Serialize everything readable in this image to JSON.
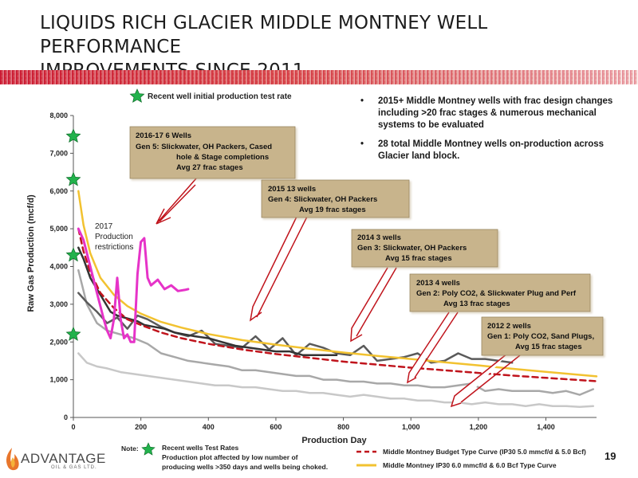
{
  "title_line1": "LIQUIDS RICH GLACIER MIDDLE MONTNEY WELL PERFORMANCE",
  "title_line2": "IMPROVEMENTS SINCE 2011",
  "bullets": [
    "2015+ Middle Montney wells with frac design changes including >20 frac stages & numerous mechanical systems to be evaluated",
    "28 total Middle Montney wells on-production across Glacier land block."
  ],
  "star_legend": "Recent well initial production test rate",
  "note": {
    "label": "Note:",
    "line1": "Recent wells Test Rates",
    "line2": "Production plot affected by low number of",
    "line3": "producing wells  >350 days and wells being choked."
  },
  "page_number": "19",
  "logo": {
    "name": "ADVANTAGE",
    "sub": "OIL & GAS LTD."
  },
  "colors": {
    "accent": "#c8102e",
    "budget": "#c0141c",
    "ip30": "#f2c230",
    "restricted": "#e633c8",
    "gen_dark": "#3a3a3a",
    "gen_mid": "#606060",
    "gen_light": "#a8a8a8",
    "gen_lightest": "#c8c8c8",
    "callout_bg": "#c8b48c",
    "star": "#22b24c"
  },
  "annotations": {
    "restriction": [
      "2017",
      "Production",
      "restrictions"
    ],
    "gen5": {
      "head": "2016-17   6 Wells",
      "lines": [
        "Gen 5:      Slickwater, OH Packers,  Cased",
        "hole & Stage completions",
        "Avg 27 frac stages"
      ]
    },
    "gen4": {
      "head": "2015      13 wells",
      "lines": [
        "Gen 4:   Slickwater, OH Packers",
        "Avg 19 frac stages"
      ]
    },
    "gen3": {
      "head": "2014     3 wells",
      "lines": [
        "Gen 3:  Slickwater, OH Packers",
        "Avg 15 frac stages"
      ]
    },
    "gen2": {
      "head": "2013     4 wells",
      "lines": [
        "Gen 2: Poly CO2,  & Slickwater  Plug and Perf",
        "Avg 13 frac stages"
      ]
    },
    "gen1": {
      "head": "2012     2 wells",
      "lines": [
        "Gen 1:  Poly CO2,  Sand Plugs,",
        "Avg 15 frac stages"
      ]
    }
  },
  "chart_data": {
    "type": "line",
    "xlabel": "Production Day",
    "ylabel": "Raw Gas Production (mcf/d)",
    "xlim": [
      0,
      1550
    ],
    "ylim": [
      0,
      8000
    ],
    "x_ticks": [
      0,
      200,
      400,
      600,
      800,
      1000,
      1200,
      1400
    ],
    "x_tick_labels": [
      "0",
      "200",
      "400",
      "600",
      "800",
      "1,000",
      "1,200",
      "1,400"
    ],
    "y_ticks": [
      0,
      1000,
      2000,
      3000,
      4000,
      5000,
      6000,
      7000,
      8000
    ],
    "y_tick_labels": [
      "0",
      "1,000",
      "2,000",
      "3,000",
      "4,000",
      "5,000",
      "6,000",
      "7,000",
      "8,000"
    ],
    "grid": false,
    "legend_position": "bottom",
    "initial_test_rates": [
      7450,
      6300,
      4300,
      2200
    ],
    "series": [
      {
        "name": "Middle Montney Budget Type Curve (IP30 5.0 mmcf/d & 5.0 Bcf)",
        "style": "dashed",
        "color": "#c0141c",
        "x": [
          15,
          30,
          50,
          80,
          120,
          160,
          200,
          260,
          320,
          400,
          500,
          600,
          700,
          800,
          900,
          1000,
          1100,
          1200,
          1300,
          1400,
          1500,
          1550
        ],
        "y": [
          5000,
          4400,
          3850,
          3300,
          2900,
          2600,
          2450,
          2250,
          2100,
          1950,
          1800,
          1680,
          1580,
          1480,
          1400,
          1320,
          1250,
          1180,
          1110,
          1050,
          990,
          960
        ]
      },
      {
        "name": "Middle Montney IP30 6.0 mmcf/d & 6.0 Bcf Type Curve",
        "style": "solid",
        "color": "#f2c230",
        "x": [
          15,
          30,
          50,
          80,
          120,
          160,
          200,
          260,
          320,
          400,
          500,
          600,
          700,
          800,
          900,
          1000,
          1100,
          1200,
          1300,
          1400,
          1500,
          1550
        ],
        "y": [
          6000,
          5100,
          4350,
          3700,
          3250,
          2950,
          2750,
          2530,
          2380,
          2210,
          2050,
          1930,
          1820,
          1720,
          1630,
          1550,
          1460,
          1380,
          1290,
          1210,
          1130,
          1090
        ]
      },
      {
        "name": "",
        "style": "solid",
        "color": "#e633c8",
        "width": 3,
        "x": [
          15,
          30,
          50,
          70,
          90,
          100,
          110,
          120,
          130,
          140,
          150,
          160,
          170,
          180,
          190,
          200,
          210,
          220,
          230,
          250,
          270,
          290,
          310,
          330,
          340
        ],
        "y": [
          5000,
          4700,
          4000,
          3300,
          2600,
          2300,
          2100,
          2600,
          3700,
          2600,
          2100,
          2200,
          2000,
          2000,
          3800,
          4650,
          4750,
          3700,
          3500,
          3650,
          3400,
          3500,
          3350,
          3380,
          3400
        ]
      },
      {
        "name": "",
        "style": "solid",
        "color": "#333333",
        "width": 2.5,
        "x": [
          15,
          30,
          50,
          70,
          90,
          110,
          130,
          150,
          170,
          190,
          210,
          240,
          270,
          300,
          330,
          360,
          400,
          440,
          480,
          520,
          560,
          600,
          640,
          680,
          720,
          760,
          780
        ],
        "y": [
          4500,
          4200,
          3700,
          3400,
          3100,
          2800,
          2700,
          2650,
          2600,
          2550,
          2450,
          2400,
          2350,
          2250,
          2200,
          2150,
          2100,
          2000,
          1900,
          1850,
          1800,
          1750,
          1750,
          1650,
          1650,
          1650,
          1650
        ]
      },
      {
        "name": "",
        "style": "solid",
        "color": "#5a5a5a",
        "width": 2.5,
        "x": [
          15,
          40,
          70,
          100,
          130,
          160,
          190,
          220,
          260,
          300,
          340,
          380,
          420,
          460,
          500,
          540,
          580,
          620,
          660,
          700,
          740,
          780,
          820,
          860,
          900,
          940,
          980,
          1020,
          1060,
          1100,
          1140,
          1180,
          1220,
          1260,
          1300
        ],
        "y": [
          3300,
          3050,
          2800,
          2500,
          2650,
          2350,
          2700,
          2600,
          2400,
          2250,
          2150,
          2300,
          1950,
          1900,
          1850,
          2150,
          1800,
          2100,
          1650,
          1950,
          1850,
          1700,
          1650,
          1900,
          1500,
          1550,
          1600,
          1700,
          1450,
          1500,
          1700,
          1550,
          1550,
          1500,
          1450
        ]
      },
      {
        "name": "",
        "style": "solid",
        "color": "#a8a8a8",
        "width": 2.5,
        "x": [
          15,
          40,
          70,
          100,
          140,
          180,
          220,
          260,
          300,
          340,
          380,
          420,
          460,
          500,
          540,
          580,
          620,
          660,
          700,
          740,
          780,
          820,
          860,
          900,
          940,
          980,
          1020,
          1060,
          1100,
          1140,
          1180,
          1220,
          1260,
          1300,
          1340,
          1380,
          1420,
          1460,
          1500,
          1540
        ],
        "y": [
          3900,
          3000,
          2500,
          2300,
          2200,
          2100,
          1950,
          1700,
          1600,
          1500,
          1450,
          1400,
          1350,
          1250,
          1250,
          1200,
          1150,
          1100,
          1100,
          1000,
          1000,
          950,
          950,
          900,
          900,
          850,
          850,
          800,
          800,
          850,
          900,
          700,
          750,
          700,
          700,
          700,
          650,
          700,
          600,
          750
        ]
      },
      {
        "name": "",
        "style": "solid",
        "color": "#c8c8c8",
        "width": 2.5,
        "x": [
          15,
          40,
          70,
          100,
          140,
          180,
          220,
          260,
          300,
          340,
          380,
          420,
          460,
          500,
          540,
          580,
          620,
          660,
          700,
          740,
          780,
          820,
          860,
          900,
          940,
          980,
          1020,
          1060,
          1100,
          1140,
          1180,
          1220,
          1260,
          1300,
          1340,
          1380,
          1420,
          1460,
          1500,
          1540
        ],
        "y": [
          1700,
          1450,
          1350,
          1300,
          1200,
          1150,
          1100,
          1050,
          1000,
          950,
          900,
          850,
          850,
          800,
          800,
          750,
          700,
          700,
          650,
          650,
          600,
          550,
          600,
          550,
          500,
          500,
          450,
          450,
          400,
          400,
          350,
          400,
          350,
          350,
          300,
          350,
          300,
          300,
          280,
          300
        ]
      }
    ]
  }
}
